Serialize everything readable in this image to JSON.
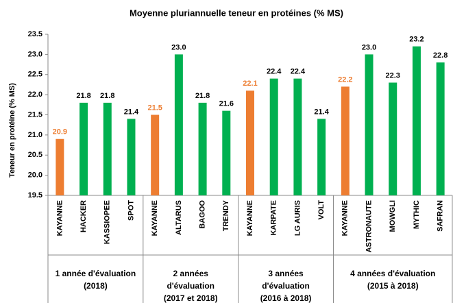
{
  "chart_data": {
    "type": "bar",
    "title": "Moyenne pluriannuelle teneur en protéines (% MS)",
    "y_label": "Teneur en protéine (% MS)",
    "ylim": [
      19.5,
      23.5
    ],
    "yticks": [
      19.5,
      {
        "value": 20,
        "label": "20.0"
      },
      20.5,
      {
        "value": 21,
        "label": "21.0"
      },
      21.5,
      {
        "value": 22,
        "label": "22.0"
      },
      22.5,
      {
        "value": 23,
        "label": "23.0"
      },
      23.5
    ],
    "groups": [
      {
        "label": [
          "1 année d'évaluation",
          "(2018)"
        ],
        "categories": [
          "KAYANNE",
          "HACKER",
          "KASSIOPEE",
          "SPOT"
        ],
        "values": [
          20.9,
          21.8,
          21.8,
          21.4
        ],
        "value_labels": [
          "20.9",
          "21.8",
          "21.8",
          "21.4"
        ],
        "colors": [
          "#ed7d31",
          "#00b050",
          "#00b050",
          "#00b050"
        ]
      },
      {
        "label": [
          "2 années",
          "d'évaluation",
          "(2017 et 2018)"
        ],
        "categories": [
          "KAYANNE",
          "ALTARUS",
          "BAGOO",
          "TRENDY"
        ],
        "values": [
          21.5,
          23.0,
          21.8,
          21.6
        ],
        "value_labels": [
          "21.5",
          "23.0",
          "21.8",
          "21.6"
        ],
        "colors": [
          "#ed7d31",
          "#00b050",
          "#00b050",
          "#00b050"
        ]
      },
      {
        "label": [
          "3 années",
          "d'évaluation",
          "(2016 à 2018)"
        ],
        "categories": [
          "KAYANNE",
          "KARPATE",
          "LG AURIS",
          "VOLT"
        ],
        "values": [
          22.1,
          22.4,
          22.4,
          21.4
        ],
        "value_labels": [
          "22.1",
          "22.4",
          "22.4",
          "21.4"
        ],
        "colors": [
          "#ed7d31",
          "#00b050",
          "#00b050",
          "#00b050"
        ]
      },
      {
        "label": [
          "4 années d'évaluation",
          "(2015 à 2018)"
        ],
        "categories": [
          "KAYANNE",
          "ASTRONAUTE",
          "MOWGLI",
          "MYTHIC",
          "SAFRAN"
        ],
        "values": [
          22.2,
          23.0,
          22.3,
          23.2,
          22.8
        ],
        "value_labels": [
          "22.2",
          "23.0",
          "22.3",
          "23.2",
          "22.8"
        ],
        "colors": [
          "#ed7d31",
          "#00b050",
          "#00b050",
          "#00b050",
          "#00b050"
        ]
      }
    ]
  }
}
